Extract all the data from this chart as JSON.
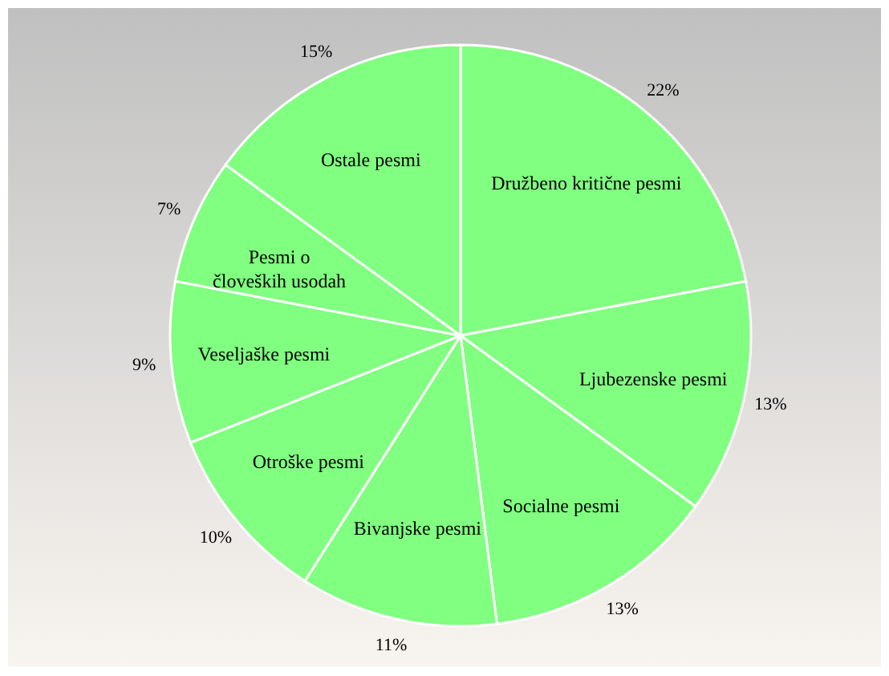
{
  "chart_data": {
    "type": "pie",
    "categories": [
      "Družbeno kritične pesmi",
      "Ljubezenske pesmi",
      "Socialne pesmi",
      "Bivanjske pesmi",
      "Otroške pesmi",
      "Veseljaške pesmi",
      "Pesmi o človeških usodah",
      "Ostale pesmi"
    ],
    "values": [
      22,
      13,
      13,
      11,
      10,
      9,
      7,
      15
    ],
    "value_labels": [
      "22%",
      "13%",
      "13%",
      "11%",
      "10%",
      "9%",
      "7%",
      "15%"
    ],
    "colors": [
      "#80ff80",
      "#80ff80",
      "#80ff80",
      "#80ff80",
      "#80ff80",
      "#80ff80",
      "#80ff80",
      "#80ff80"
    ]
  }
}
